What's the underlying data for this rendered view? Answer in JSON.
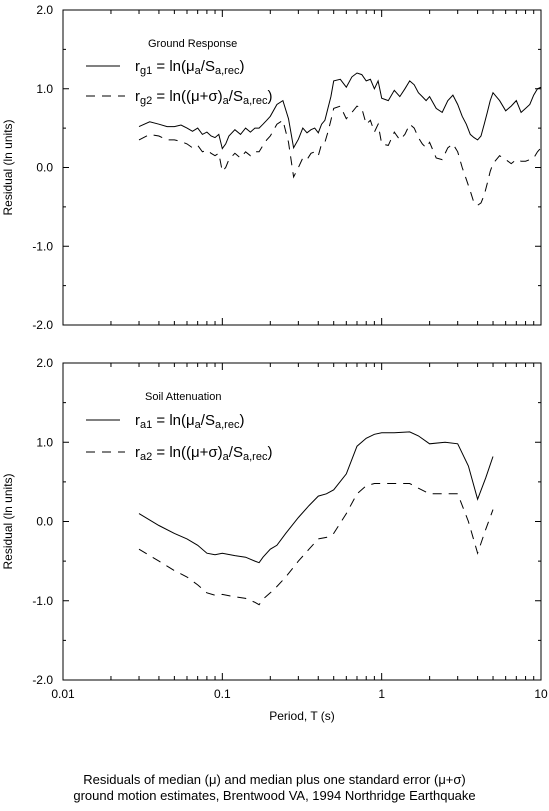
{
  "chart_data": [
    {
      "type": "line",
      "x_scale": "log",
      "xlim": [
        0.01,
        10
      ],
      "ylim": [
        -2.0,
        2.0
      ],
      "x_ticks": [
        0.01,
        0.1,
        1,
        10
      ],
      "x_tick_labels": [
        "",
        "",
        "",
        ""
      ],
      "y_ticks": [
        -2.0,
        -1.0,
        0.0,
        1.0,
        2.0
      ],
      "y_tick_labels": [
        "-2.0",
        "-1.0",
        "0.0",
        "1.0",
        "2.0"
      ],
      "ylabel": "Residual (ln units)",
      "xlabel": "",
      "legend_title": "Ground Response",
      "legend_position": "top-left",
      "series": [
        {
          "name": "rg1 = ln(μa/Sa,rec)",
          "dash": "solid",
          "x": [
            0.03,
            0.035,
            0.04,
            0.045,
            0.05,
            0.055,
            0.06,
            0.065,
            0.07,
            0.075,
            0.08,
            0.085,
            0.09,
            0.095,
            0.1,
            0.105,
            0.11,
            0.12,
            0.13,
            0.14,
            0.15,
            0.16,
            0.17,
            0.18,
            0.19,
            0.2,
            0.22,
            0.24,
            0.26,
            0.28,
            0.3,
            0.32,
            0.34,
            0.36,
            0.38,
            0.4,
            0.42,
            0.44,
            0.46,
            0.48,
            0.5,
            0.55,
            0.6,
            0.65,
            0.7,
            0.75,
            0.8,
            0.85,
            0.9,
            0.95,
            1.0,
            1.1,
            1.2,
            1.3,
            1.4,
            1.5,
            1.6,
            1.7,
            1.8,
            1.9,
            2.0,
            2.2,
            2.4,
            2.6,
            2.8,
            3.0,
            3.2,
            3.4,
            3.6,
            3.8,
            4.0,
            4.2,
            4.4,
            4.6,
            4.8,
            5.0,
            5.5,
            6.0,
            6.5,
            7.0,
            7.5,
            8.0,
            8.5,
            9.0,
            9.5,
            10.0
          ],
          "y": [
            0.52,
            0.58,
            0.55,
            0.52,
            0.52,
            0.54,
            0.5,
            0.46,
            0.5,
            0.42,
            0.45,
            0.4,
            0.38,
            0.42,
            0.24,
            0.3,
            0.4,
            0.48,
            0.42,
            0.5,
            0.45,
            0.5,
            0.5,
            0.55,
            0.6,
            0.65,
            0.8,
            0.85,
            0.62,
            0.25,
            0.36,
            0.5,
            0.44,
            0.48,
            0.5,
            0.44,
            0.55,
            0.6,
            0.75,
            0.9,
            1.1,
            1.12,
            1.02,
            1.15,
            1.2,
            1.18,
            1.1,
            1.12,
            1.0,
            1.1,
            0.88,
            0.85,
            0.98,
            0.9,
            1.0,
            1.1,
            1.05,
            0.95,
            0.9,
            0.85,
            0.9,
            0.75,
            0.7,
            0.85,
            0.92,
            0.8,
            0.65,
            0.55,
            0.42,
            0.38,
            0.35,
            0.4,
            0.55,
            0.7,
            0.85,
            0.95,
            0.85,
            0.72,
            0.78,
            0.85,
            0.7,
            0.75,
            0.8,
            0.92,
            1.0,
            1.02
          ]
        },
        {
          "name": "rg2 = ln((μ+σ)a/Sa,rec)",
          "dash": "dashed",
          "x": [
            0.03,
            0.035,
            0.04,
            0.045,
            0.05,
            0.055,
            0.06,
            0.065,
            0.07,
            0.075,
            0.08,
            0.085,
            0.09,
            0.095,
            0.1,
            0.105,
            0.11,
            0.12,
            0.13,
            0.14,
            0.15,
            0.16,
            0.17,
            0.18,
            0.19,
            0.2,
            0.22,
            0.24,
            0.26,
            0.28,
            0.3,
            0.32,
            0.34,
            0.36,
            0.38,
            0.4,
            0.42,
            0.44,
            0.46,
            0.48,
            0.5,
            0.55,
            0.6,
            0.65,
            0.7,
            0.75,
            0.8,
            0.85,
            0.9,
            0.95,
            1.0,
            1.1,
            1.2,
            1.3,
            1.4,
            1.5,
            1.6,
            1.7,
            1.8,
            1.9,
            2.0,
            2.2,
            2.4,
            2.6,
            2.8,
            3.0,
            3.2,
            3.4,
            3.6,
            3.8,
            4.0,
            4.2,
            4.4,
            4.6,
            4.8,
            5.0,
            5.5,
            6.0,
            6.5,
            7.0,
            7.5,
            8.0,
            8.5,
            9.0,
            9.5,
            10.0
          ],
          "y": [
            0.35,
            0.42,
            0.4,
            0.35,
            0.35,
            0.33,
            0.3,
            0.25,
            0.28,
            0.2,
            0.22,
            0.18,
            0.15,
            0.18,
            -0.05,
            0.0,
            0.1,
            0.18,
            0.12,
            0.2,
            0.15,
            0.2,
            0.2,
            0.28,
            0.35,
            0.4,
            0.55,
            0.6,
            0.32,
            -0.12,
            0.0,
            0.12,
            0.1,
            0.18,
            0.2,
            0.15,
            0.3,
            0.32,
            0.45,
            0.6,
            0.75,
            0.78,
            0.62,
            0.7,
            0.78,
            0.75,
            0.55,
            0.6,
            0.45,
            0.55,
            0.3,
            0.28,
            0.45,
            0.35,
            0.42,
            0.55,
            0.5,
            0.38,
            0.3,
            0.25,
            0.32,
            0.12,
            0.1,
            0.25,
            0.3,
            0.2,
            0.0,
            -0.15,
            -0.3,
            -0.45,
            -0.48,
            -0.45,
            -0.35,
            -0.2,
            -0.05,
            0.05,
            0.15,
            0.1,
            0.05,
            0.1,
            0.08,
            0.08,
            0.1,
            0.12,
            0.2,
            0.25
          ]
        }
      ]
    },
    {
      "type": "line",
      "x_scale": "log",
      "xlim": [
        0.01,
        10
      ],
      "ylim": [
        -2.0,
        2.0
      ],
      "x_ticks": [
        0.01,
        0.1,
        1,
        10
      ],
      "x_tick_labels": [
        "0.01",
        "0.1",
        "1",
        "10"
      ],
      "y_ticks": [
        -2.0,
        -1.0,
        0.0,
        1.0,
        2.0
      ],
      "y_tick_labels": [
        "-2.0",
        "-1.0",
        "0.0",
        "1.0",
        "2.0"
      ],
      "ylabel": "Residual (ln units)",
      "xlabel": "Period, T (s)",
      "legend_title": "Soil Attenuation",
      "legend_position": "top-left",
      "series": [
        {
          "name": "ra1 = ln(μa/Sa,rec)",
          "dash": "solid",
          "x": [
            0.03,
            0.04,
            0.05,
            0.06,
            0.07,
            0.08,
            0.09,
            0.1,
            0.12,
            0.14,
            0.16,
            0.17,
            0.18,
            0.2,
            0.22,
            0.25,
            0.3,
            0.35,
            0.4,
            0.45,
            0.5,
            0.6,
            0.7,
            0.8,
            0.9,
            1.0,
            1.2,
            1.5,
            1.7,
            2.0,
            2.5,
            3.0,
            3.5,
            4.0,
            4.5,
            5.0
          ],
          "y": [
            0.1,
            -0.05,
            -0.15,
            -0.22,
            -0.3,
            -0.4,
            -0.42,
            -0.4,
            -0.43,
            -0.45,
            -0.5,
            -0.52,
            -0.45,
            -0.35,
            -0.3,
            -0.15,
            0.05,
            0.2,
            0.32,
            0.35,
            0.4,
            0.6,
            0.95,
            1.05,
            1.1,
            1.12,
            1.12,
            1.13,
            1.08,
            0.98,
            1.0,
            0.98,
            0.7,
            0.28,
            0.55,
            0.82
          ]
        },
        {
          "name": "ra2 = ln((μ+σ)a/Sa,rec)",
          "dash": "dashed",
          "x": [
            0.03,
            0.04,
            0.05,
            0.06,
            0.07,
            0.08,
            0.09,
            0.1,
            0.12,
            0.14,
            0.16,
            0.17,
            0.18,
            0.2,
            0.22,
            0.25,
            0.3,
            0.35,
            0.4,
            0.45,
            0.5,
            0.6,
            0.7,
            0.8,
            0.9,
            1.0,
            1.2,
            1.5,
            1.7,
            2.0,
            2.5,
            3.0,
            3.5,
            4.0,
            4.5,
            5.0
          ],
          "y": [
            -0.35,
            -0.5,
            -0.62,
            -0.7,
            -0.8,
            -0.9,
            -0.93,
            -0.92,
            -0.95,
            -0.97,
            -1.02,
            -1.05,
            -0.98,
            -0.9,
            -0.82,
            -0.7,
            -0.5,
            -0.35,
            -0.22,
            -0.2,
            -0.15,
            0.1,
            0.35,
            0.45,
            0.48,
            0.48,
            0.48,
            0.48,
            0.42,
            0.35,
            0.35,
            0.35,
            0.0,
            -0.4,
            -0.1,
            0.15
          ]
        }
      ]
    }
  ],
  "caption": {
    "line1": "Residuals of median (μ) and median plus one standard error (μ+σ)",
    "line2": "ground motion estimates, Brentwood VA, 1994 Northridge Earthquake"
  }
}
